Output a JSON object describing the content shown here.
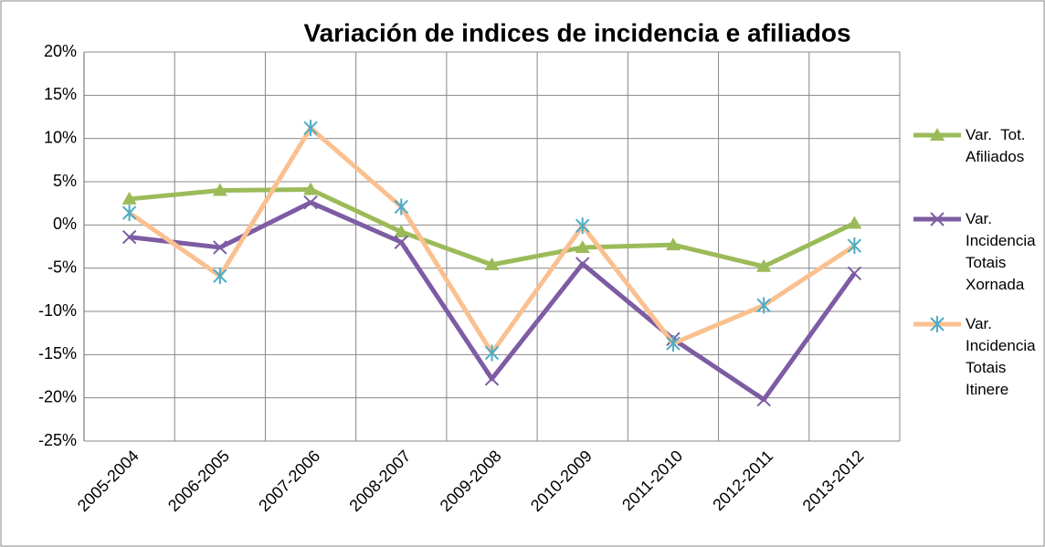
{
  "chart_data": {
    "type": "line",
    "title": "Variación de indices de incidencia e afiliados",
    "categories": [
      "2005-2004",
      "2006-2005",
      "2007-2006",
      "2008-2007",
      "2009-2008",
      "2010-2009",
      "2011-2010",
      "2012-2011",
      "2013-2012"
    ],
    "series": [
      {
        "name": "Var.  Tot. Afiliados",
        "color": "#9bbb59",
        "marker": "triangle",
        "values": [
          3,
          4,
          4.1,
          -0.8,
          -4.6,
          -2.6,
          -2.3,
          -4.8,
          0.2
        ]
      },
      {
        "name": "Var. Incidencia Totais Xornada",
        "color": "#7d5ca3",
        "marker": "x",
        "values": [
          -1.4,
          -2.6,
          2.6,
          -2,
          -17.8,
          -4.5,
          -13.2,
          -20.2,
          -5.6
        ]
      },
      {
        "name": "Var. Incidencia Totais Itinere",
        "color": "#fac090",
        "marker": "star",
        "marker_color": "#4bacc6",
        "values": [
          1.4,
          -5.9,
          11.2,
          2.1,
          -14.8,
          -0.1,
          -13.7,
          -9.3,
          -2.4
        ]
      }
    ],
    "ylim": [
      -25,
      20
    ],
    "yticks": [
      {
        "value": -25,
        "label": "-25%"
      },
      {
        "value": -20,
        "label": "-20%"
      },
      {
        "value": -15,
        "label": "-15%"
      },
      {
        "value": -10,
        "label": "-10%"
      },
      {
        "value": -5,
        "label": "-5%"
      },
      {
        "value": 0,
        "label": "0%"
      },
      {
        "value": 5,
        "label": "5%"
      },
      {
        "value": 10,
        "label": "10%"
      },
      {
        "value": 15,
        "label": "15%"
      },
      {
        "value": 20,
        "label": "20%"
      }
    ],
    "grid": true,
    "legend": "right"
  }
}
